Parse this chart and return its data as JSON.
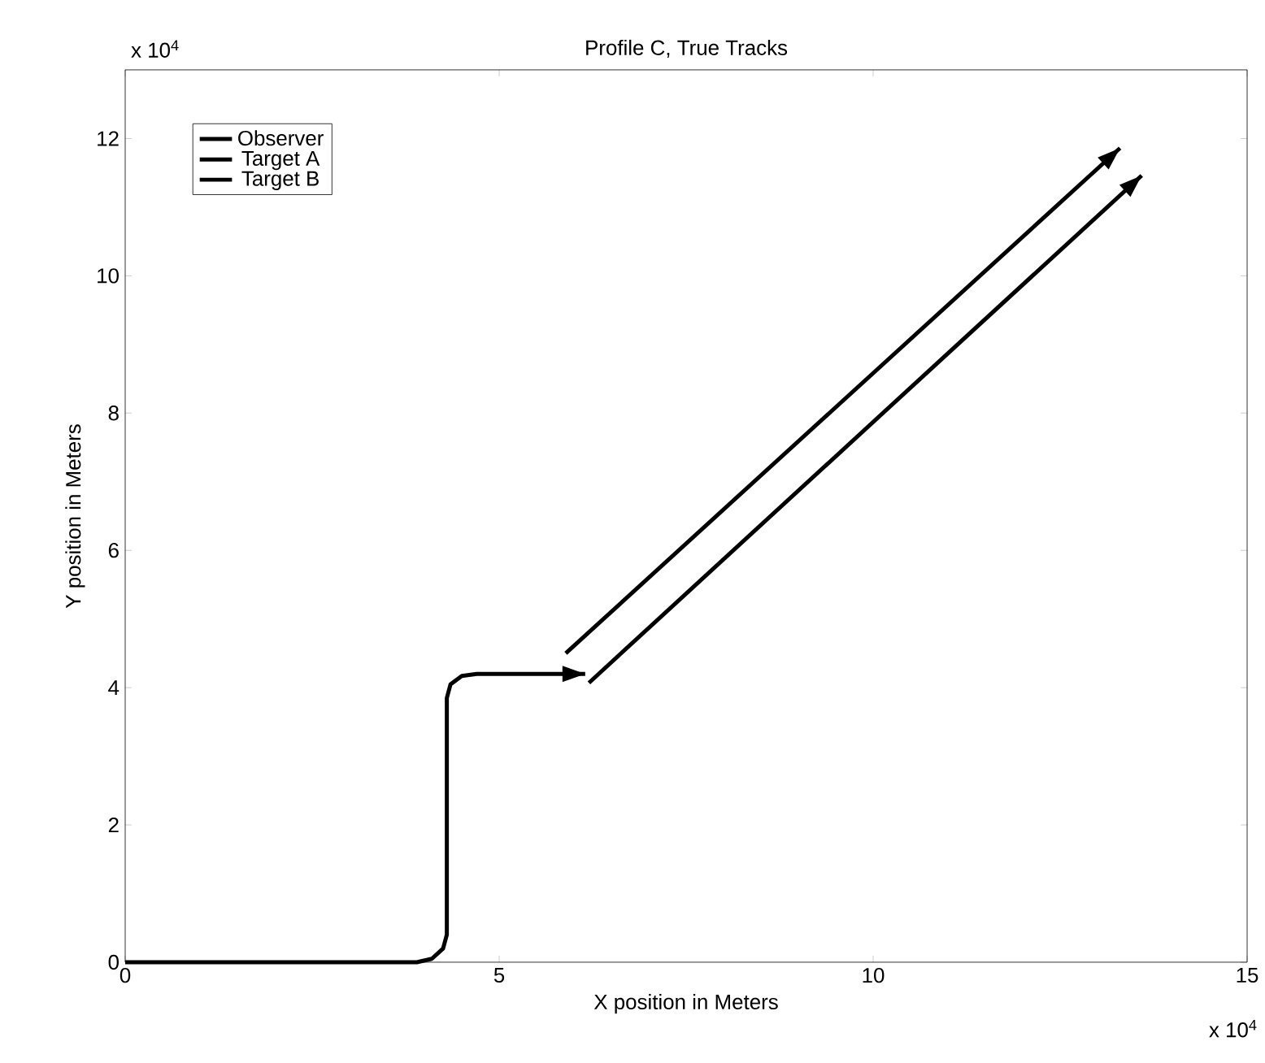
{
  "chart_data": {
    "type": "line",
    "title": "Profile C, True Tracks",
    "xlabel": "X position in Meters",
    "ylabel": "Y position in Meters",
    "xlim": [
      0,
      15
    ],
    "xticks": [
      0,
      5,
      10,
      15
    ],
    "ylim": [
      0,
      13
    ],
    "yticks": [
      0,
      2,
      4,
      6,
      8,
      10,
      12
    ],
    "annotations": [
      "x 10$^{4}$",
      "x 10$^{4}$"
    ],
    "legend": "top left",
    "grid": false,
    "line_style": "solid",
    "marker": "none",
    "series": [
      {
        "name": "Observer",
        "color": "#000000",
        "x": [
          0,
          3.9,
          4.1,
          4.25,
          4.3,
          4.3,
          4.35,
          4.5,
          4.7,
          6.15
        ],
        "values": [
          0,
          0,
          0.05,
          0.2,
          0.4,
          3.85,
          4.05,
          4.17,
          4.2,
          4.2
        ]
      },
      {
        "name": "Target A",
        "color": "#000000",
        "x": [
          5.89,
          13.3
        ],
        "values": [
          4.5,
          11.86
        ]
      },
      {
        "name": "Target B",
        "color": "#000000",
        "x": [
          6.2,
          13.59
        ],
        "values": [
          4.07,
          11.46
        ]
      }
    ]
  }
}
